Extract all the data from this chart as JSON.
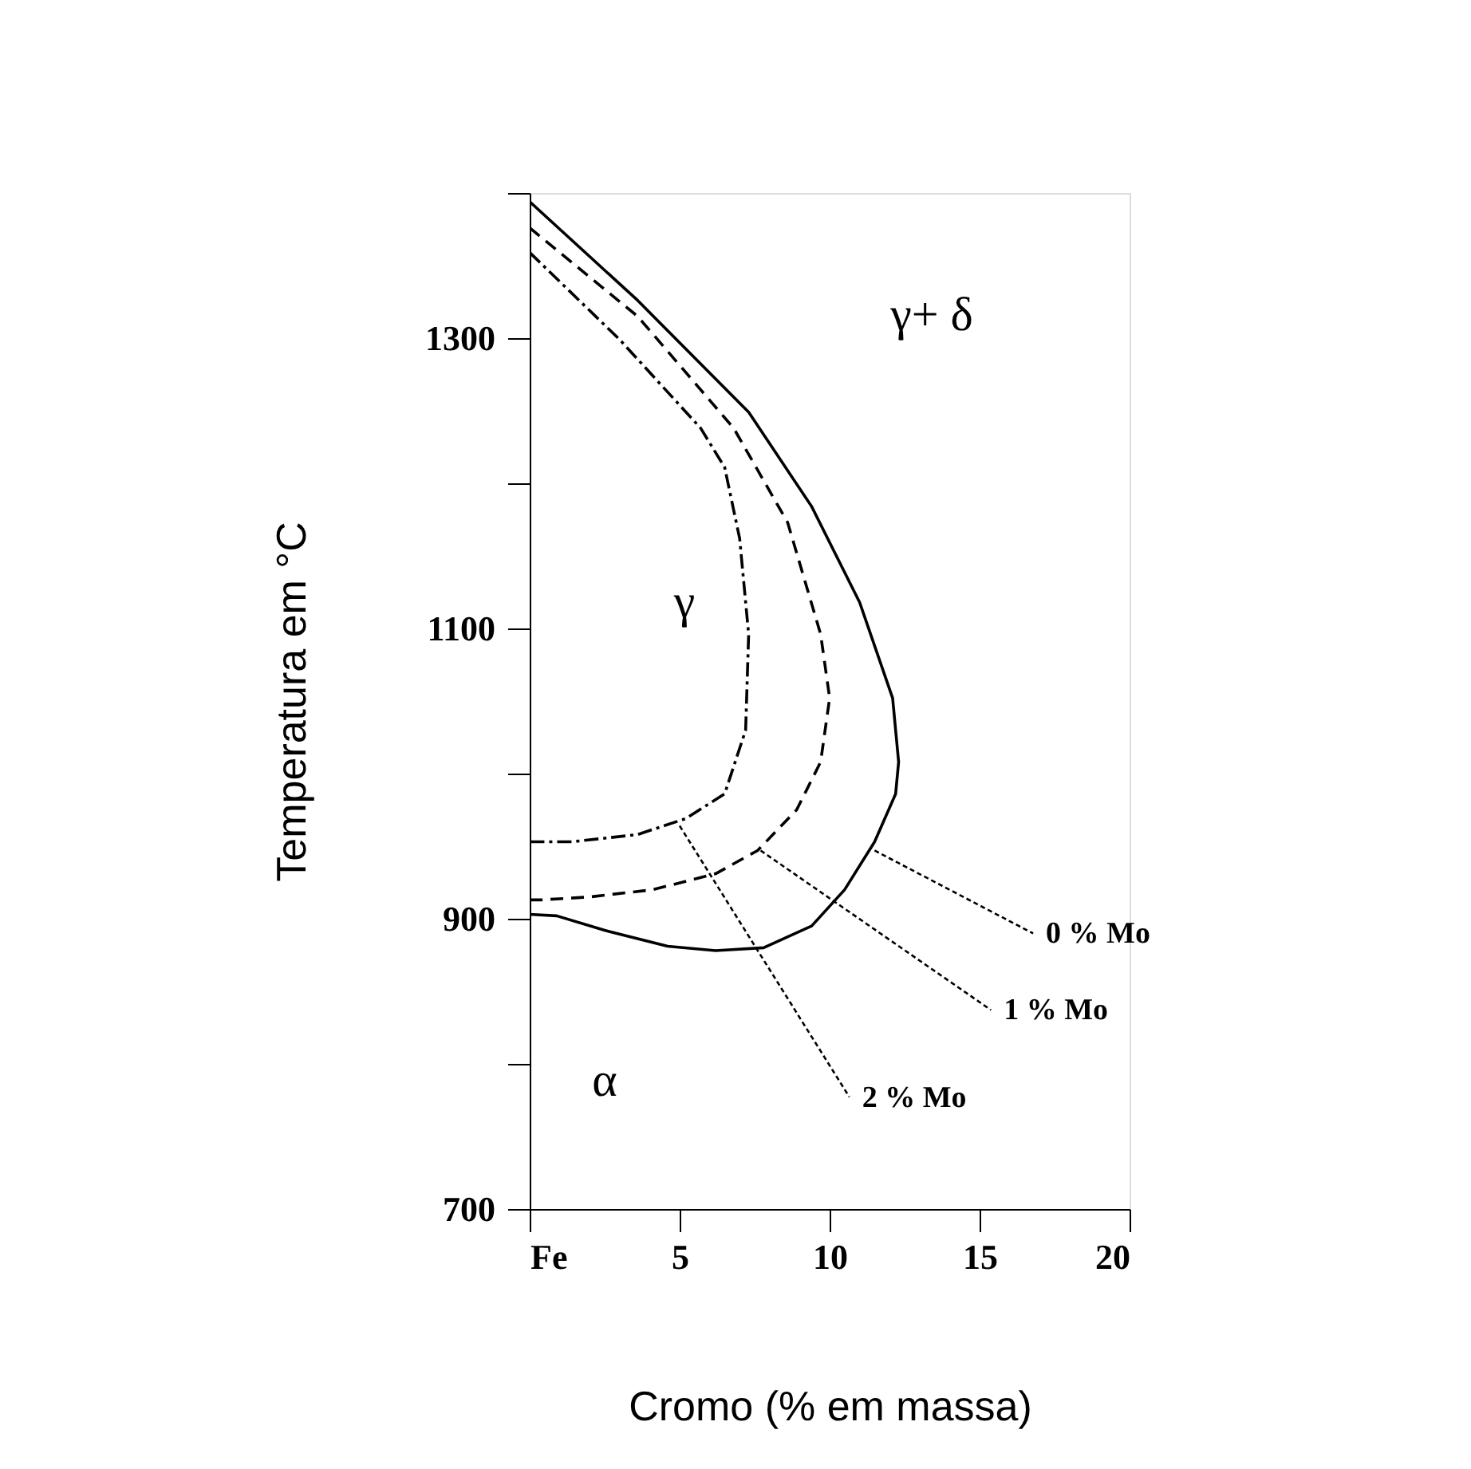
{
  "chart_data": {
    "type": "line",
    "xlabel": "Cromo (% em massa)",
    "ylabel": "Temperatura em °C",
    "xlim": [
      0,
      20
    ],
    "ylim": [
      700,
      1400
    ],
    "xticks": [
      {
        "value": 0,
        "label": "Fe"
      },
      5,
      10,
      15,
      20
    ],
    "yticks": [
      700,
      {
        "value": 800,
        "label": null
      },
      900,
      {
        "value": 1000,
        "label": null
      },
      1100,
      {
        "value": 1200,
        "label": null
      },
      1300,
      {
        "value": 1400,
        "label": null
      }
    ],
    "grid": false,
    "series": [
      {
        "color": "#000000",
        "line_style": "solid",
        "x": [
          0,
          3.6,
          7.3,
          9.4,
          11.0,
          12.1,
          12.3,
          12.2,
          11.5,
          10.5,
          9.4,
          7.8,
          6.2,
          4.6,
          2.5,
          0.9,
          0
        ],
        "values": [
          1394,
          1326,
          1249,
          1184,
          1118,
          1052,
          1008,
          986,
          953,
          920,
          895,
          880,
          878,
          881,
          892,
          902,
          903
        ]
      },
      {
        "color": "#000000",
        "line_style": "dashed",
        "x": [
          0,
          3.6,
          6.8,
          8.6,
          9.7,
          10,
          9.7,
          8.9,
          7.6,
          6.2,
          4.1,
          2.0,
          0.4,
          0
        ],
        "values": [
          1376,
          1315,
          1238,
          1173,
          1096,
          1052,
          1008,
          975,
          947,
          931,
          920,
          915,
          913,
          913
        ]
      },
      {
        "color": "#000000",
        "line_style": "dotted",
        "x": [
          0,
          3.0,
          5.7,
          6.5,
          7.0,
          7.3,
          7.2,
          6.5,
          5.2,
          3.6,
          1.4,
          0
        ],
        "values": [
          1359,
          1299,
          1238,
          1211,
          1162,
          1096,
          1030,
          986,
          969,
          958,
          953,
          953
        ]
      }
    ],
    "annotations": [
      {
        "text": "0 % Mo",
        "x": 11.5,
        "y": 947
      },
      {
        "text": "1 % Mo",
        "x": 7.7,
        "y": 947
      },
      {
        "text": "2 % Mo",
        "x": 5.0,
        "y": 964
      },
      "γ+ δ",
      "γ",
      "α"
    ]
  }
}
